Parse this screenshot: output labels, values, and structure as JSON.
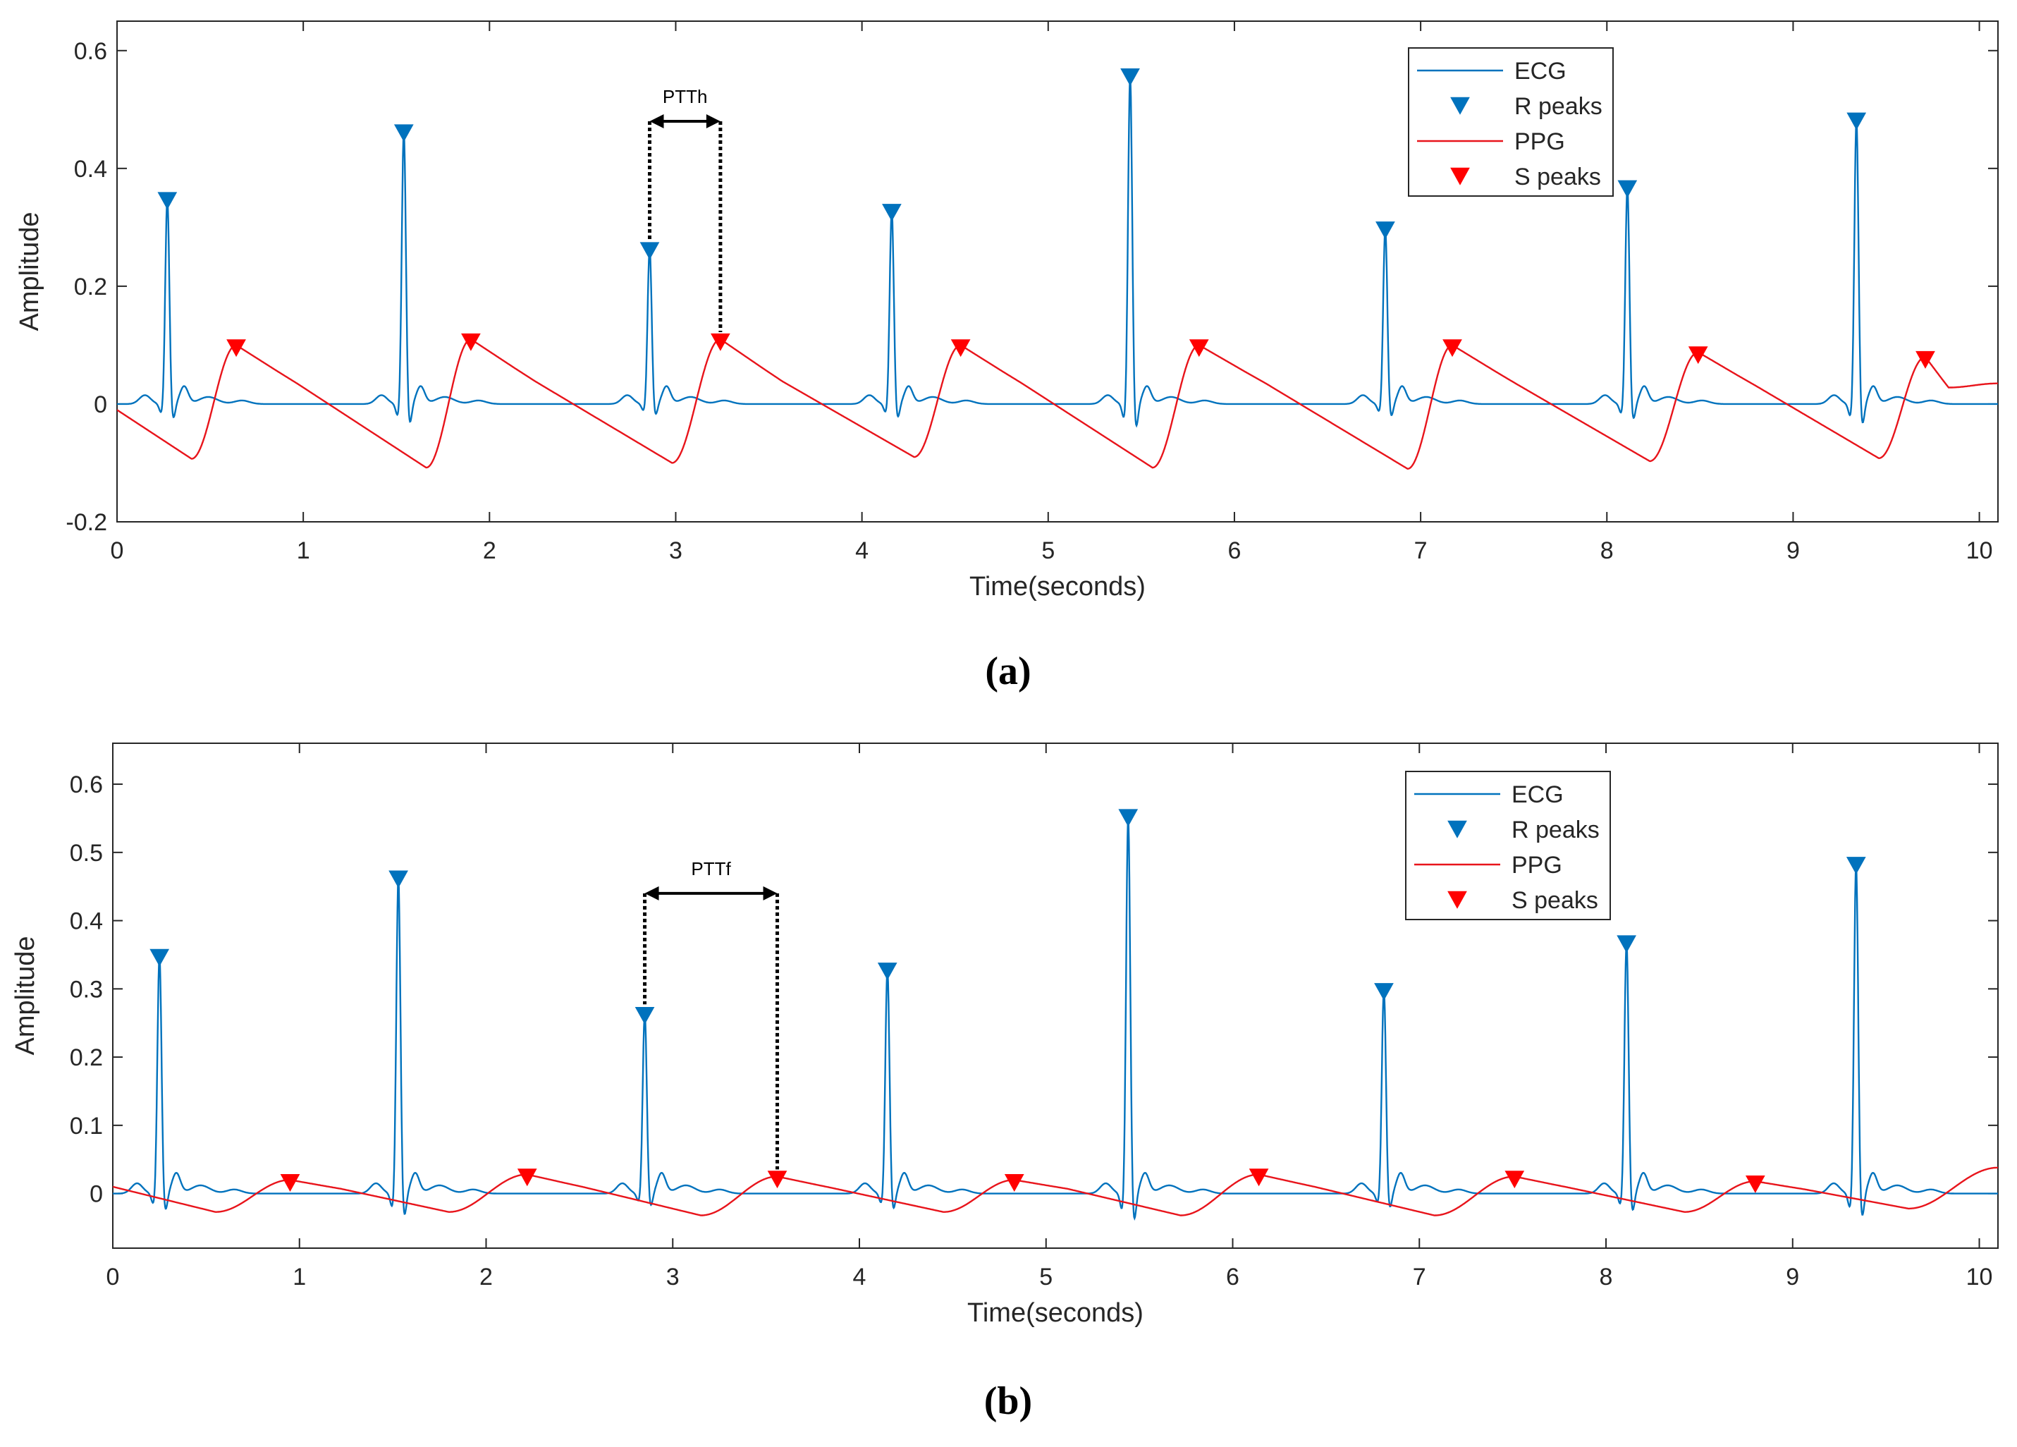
{
  "colors": {
    "ecg": "#0072BD",
    "ppg": "#E8141B",
    "r_peak": "#0072BD",
    "s_peak": "#FF0000",
    "axis": "#262626",
    "annotation": "#000000"
  },
  "chart_data": [
    {
      "type": "line",
      "caption": "(a)",
      "title": "",
      "xlabel": "Time(seconds)",
      "ylabel": "Amplitude",
      "xlim": [
        0,
        10.1
      ],
      "ylim": [
        -0.2,
        0.65
      ],
      "x_ticks": [
        0,
        1,
        2,
        3,
        4,
        5,
        6,
        7,
        8,
        9,
        10
      ],
      "x_tick_labels": [
        "0",
        "1",
        "2",
        "3",
        "4",
        "5",
        "6",
        "7",
        "8",
        "9",
        "10"
      ],
      "y_ticks": [
        -0.2,
        0,
        0.2,
        0.4,
        0.6
      ],
      "y_tick_labels": [
        "-0.2",
        "0",
        "0.2",
        "0.4",
        "0.6"
      ],
      "grid": false,
      "legend_position": "top-right",
      "legend": [
        "ECG",
        "R peaks",
        "PPG",
        "S peaks"
      ],
      "series": [
        {
          "name": "ECG",
          "kind": "ecg",
          "r_times": [
            0.27,
            1.54,
            2.86,
            4.16,
            5.44,
            6.81,
            8.11,
            9.34
          ],
          "r_values": [
            0.35,
            0.465,
            0.265,
            0.33,
            0.56,
            0.3,
            0.37,
            0.485
          ]
        },
        {
          "name": "PPG",
          "kind": "ppg",
          "start_value": -0.01,
          "end_value": 0.035,
          "foot_times": [
            0.4,
            1.66,
            2.98,
            4.28,
            5.56,
            6.93,
            8.23,
            9.46
          ],
          "foot_values": [
            -0.093,
            -0.108,
            -0.1,
            -0.09,
            -0.108,
            -0.11,
            -0.097,
            -0.092
          ],
          "peak_times": [
            0.64,
            1.9,
            3.24,
            4.53,
            5.81,
            7.17,
            8.49,
            9.71
          ],
          "peak_values": [
            0.1,
            0.11,
            0.11,
            0.1,
            0.1,
            0.1,
            0.088,
            0.08
          ]
        }
      ],
      "r_peaks": {
        "name": "R peaks",
        "x": [
          0.27,
          1.54,
          2.86,
          4.16,
          5.44,
          6.81,
          8.11,
          9.34
        ],
        "y": [
          0.35,
          0.465,
          0.265,
          0.33,
          0.56,
          0.3,
          0.37,
          0.485
        ]
      },
      "s_peaks": {
        "name": "S peaks",
        "x": [
          0.64,
          1.9,
          3.24,
          4.53,
          5.81,
          7.17,
          8.49,
          9.71
        ],
        "y": [
          0.1,
          0.11,
          0.11,
          0.1,
          0.1,
          0.1,
          0.088,
          0.08
        ]
      },
      "annotation": {
        "label": "PTTh",
        "x_start": 2.86,
        "x_end": 3.24,
        "y_arrow": 0.48
      }
    },
    {
      "type": "line",
      "caption": "(b)",
      "title": "",
      "xlabel": "Time(seconds)",
      "ylabel": "Amplitude",
      "xlim": [
        0,
        10.1
      ],
      "ylim": [
        -0.08,
        0.66
      ],
      "x_ticks": [
        0,
        1,
        2,
        3,
        4,
        5,
        6,
        7,
        8,
        9,
        10
      ],
      "x_tick_labels": [
        "0",
        "1",
        "2",
        "3",
        "4",
        "5",
        "6",
        "7",
        "8",
        "9",
        "10"
      ],
      "y_ticks": [
        0,
        0.1,
        0.2,
        0.3,
        0.4,
        0.5,
        0.6
      ],
      "y_tick_labels": [
        "0",
        "0.1",
        "0.2",
        "0.3",
        "0.4",
        "0.5",
        "0.6"
      ],
      "grid": false,
      "legend_position": "top-right",
      "legend": [
        "ECG",
        "R peaks",
        "PPG",
        "S peaks"
      ],
      "series": [
        {
          "name": "ECG",
          "kind": "ecg",
          "r_times": [
            0.25,
            1.53,
            2.85,
            4.15,
            5.44,
            6.81,
            8.11,
            9.34
          ],
          "r_values": [
            0.35,
            0.465,
            0.265,
            0.33,
            0.555,
            0.3,
            0.37,
            0.485
          ]
        },
        {
          "name": "PPG",
          "kind": "ppg",
          "start_value": 0.01,
          "end_value": 0.038,
          "foot_times": [
            0.55,
            1.8,
            3.15,
            4.45,
            5.72,
            7.08,
            8.42,
            9.62
          ],
          "foot_values": [
            -0.027,
            -0.027,
            -0.032,
            -0.027,
            -0.032,
            -0.032,
            -0.027,
            -0.022
          ],
          "peak_times": [
            0.95,
            2.22,
            3.56,
            4.83,
            6.14,
            7.51,
            8.8
          ],
          "peak_values": [
            0.02,
            0.028,
            0.025,
            0.02,
            0.028,
            0.025,
            0.018
          ]
        }
      ],
      "r_peaks": {
        "name": "R peaks",
        "x": [
          0.25,
          1.53,
          2.85,
          4.15,
          5.44,
          6.81,
          8.11,
          9.34
        ],
        "y": [
          0.35,
          0.465,
          0.265,
          0.33,
          0.555,
          0.3,
          0.37,
          0.485
        ]
      },
      "s_peaks": {
        "name": "S peaks",
        "x": [
          0.95,
          2.22,
          3.56,
          4.83,
          6.14,
          7.51,
          8.8
        ],
        "y": [
          0.02,
          0.028,
          0.025,
          0.02,
          0.028,
          0.025,
          0.018
        ]
      },
      "annotation": {
        "label": "PTTf",
        "x_start": 2.85,
        "x_end": 3.56,
        "y_arrow": 0.44
      }
    }
  ]
}
